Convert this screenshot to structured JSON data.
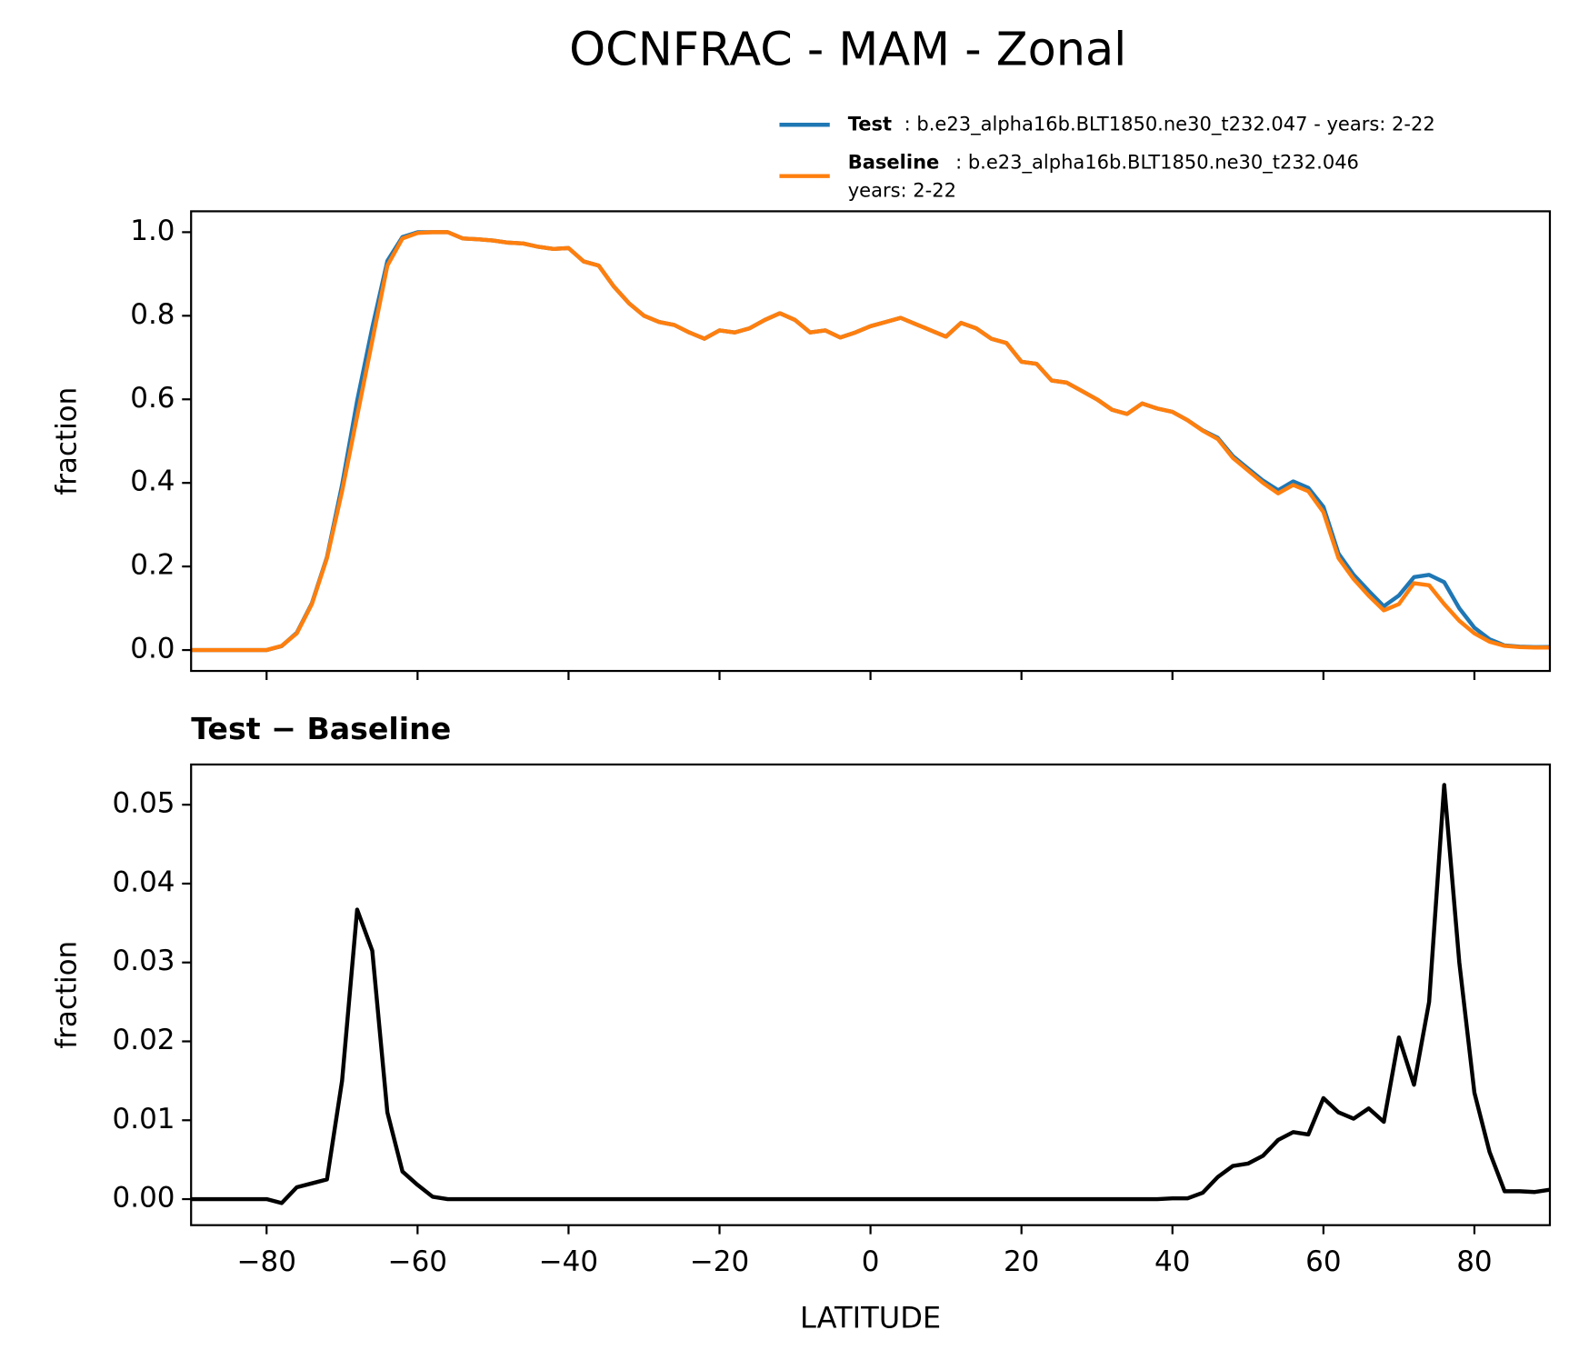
{
  "title": "OCNFRAC - MAM - Zonal",
  "chart_data": [
    {
      "type": "line",
      "ylabel": "fraction",
      "x": [
        -90,
        -88,
        -86,
        -84,
        -82,
        -80,
        -78,
        -76,
        -74,
        -72,
        -70,
        -68,
        -66,
        -64,
        -62,
        -60,
        -58,
        -56,
        -54,
        -52,
        -50,
        -48,
        -46,
        -44,
        -42,
        -40,
        -38,
        -36,
        -34,
        -32,
        -30,
        -28,
        -26,
        -24,
        -22,
        -20,
        -18,
        -16,
        -14,
        -12,
        -10,
        -8,
        -6,
        -4,
        -2,
        0,
        2,
        4,
        6,
        8,
        10,
        12,
        14,
        16,
        18,
        20,
        22,
        24,
        26,
        28,
        30,
        32,
        34,
        36,
        38,
        40,
        42,
        44,
        46,
        48,
        50,
        52,
        54,
        56,
        58,
        60,
        62,
        64,
        66,
        68,
        70,
        72,
        74,
        76,
        78,
        80,
        82,
        84,
        86,
        88,
        90
      ],
      "series": [
        {
          "name": "Test",
          "description": [
            ": b.e23_alpha16b.BLT1850.ne30_t232.047 - years: 2-22"
          ],
          "color": "#1f77b4",
          "values": [
            0,
            0,
            0,
            0,
            0,
            0,
            0.0095,
            0.0415,
            0.112,
            0.2225,
            0.395,
            0.5967,
            0.7715,
            0.931,
            0.9885,
            0.9998,
            1.0,
            1.0,
            0.985,
            0.983,
            0.98,
            0.975,
            0.973,
            0.965,
            0.96,
            0.962,
            0.93,
            0.92,
            0.87,
            0.83,
            0.8,
            0.785,
            0.778,
            0.76,
            0.745,
            0.765,
            0.76,
            0.77,
            0.79,
            0.806,
            0.79,
            0.76,
            0.765,
            0.748,
            0.76,
            0.775,
            0.785,
            0.795,
            0.78,
            0.765,
            0.75,
            0.783,
            0.77,
            0.745,
            0.735,
            0.69,
            0.685,
            0.645,
            0.64,
            0.62,
            0.6,
            0.575,
            0.565,
            0.59,
            0.578,
            0.5701,
            0.5501,
            0.5258,
            0.5078,
            0.4642,
            0.4345,
            0.4055,
            0.3825,
            0.4035,
            0.3882,
            0.3428,
            0.231,
            0.1802,
            0.1415,
            0.1048,
            0.1305,
            0.1745,
            0.18,
            0.1625,
            0.1,
            0.0535,
            0.026,
            0.011,
            0.008,
            0.0069,
            0.0072
          ]
        },
        {
          "name": "Baseline",
          "description": [
            ": b.e23_alpha16b.BLT1850.ne30_t232.046",
            "years: 2-22"
          ],
          "color": "#ff7f0e",
          "values": [
            0,
            0,
            0,
            0,
            0,
            0,
            0.01,
            0.04,
            0.11,
            0.22,
            0.38,
            0.56,
            0.74,
            0.92,
            0.985,
            0.998,
            1.0,
            1.0,
            0.985,
            0.983,
            0.98,
            0.975,
            0.973,
            0.965,
            0.96,
            0.962,
            0.93,
            0.92,
            0.87,
            0.83,
            0.8,
            0.785,
            0.778,
            0.76,
            0.745,
            0.765,
            0.76,
            0.77,
            0.79,
            0.806,
            0.79,
            0.76,
            0.765,
            0.748,
            0.76,
            0.775,
            0.785,
            0.795,
            0.78,
            0.765,
            0.75,
            0.783,
            0.77,
            0.745,
            0.735,
            0.69,
            0.685,
            0.645,
            0.64,
            0.62,
            0.6,
            0.575,
            0.565,
            0.59,
            0.578,
            0.57,
            0.55,
            0.525,
            0.505,
            0.46,
            0.43,
            0.4,
            0.375,
            0.395,
            0.38,
            0.33,
            0.22,
            0.17,
            0.13,
            0.095,
            0.11,
            0.16,
            0.155,
            0.11,
            0.07,
            0.04,
            0.02,
            0.01,
            0.007,
            0.006,
            0.006
          ]
        }
      ],
      "xlim": [
        -90,
        90
      ],
      "xticks": [
        -80,
        -60,
        -40,
        -20,
        0,
        20,
        40,
        60,
        80
      ],
      "xtick_labels": false,
      "ylim": [
        -0.05,
        1.05
      ],
      "yticks": [
        {
          "value": 0,
          "label": "0.0"
        },
        0.2,
        0.4,
        0.6,
        0.8,
        {
          "value": 1,
          "label": "1.0"
        }
      ],
      "legend": "upper right"
    },
    {
      "type": "line",
      "title": "Test − Baseline",
      "xlabel": "LATITUDE",
      "ylabel": "fraction",
      "x": [
        -90,
        -88,
        -86,
        -84,
        -82,
        -80,
        -78,
        -76,
        -74,
        -72,
        -70,
        -68,
        -66,
        -64,
        -62,
        -60,
        -58,
        -56,
        -54,
        -52,
        -50,
        -48,
        -46,
        -44,
        -42,
        -40,
        -38,
        -36,
        -34,
        -32,
        -30,
        -28,
        -26,
        -24,
        -22,
        -20,
        -18,
        -16,
        -14,
        -12,
        -10,
        -8,
        -6,
        -4,
        -2,
        0,
        2,
        4,
        6,
        8,
        10,
        12,
        14,
        16,
        18,
        20,
        22,
        24,
        26,
        28,
        30,
        32,
        34,
        36,
        38,
        40,
        42,
        44,
        46,
        48,
        50,
        52,
        54,
        56,
        58,
        60,
        62,
        64,
        66,
        68,
        70,
        72,
        74,
        76,
        78,
        80,
        82,
        84,
        86,
        88,
        90
      ],
      "series": [
        {
          "color": "#000000",
          "values": [
            0,
            0,
            0,
            0,
            0,
            0,
            -0.0005,
            0.0015,
            0.002,
            0.0025,
            0.015,
            0.0367,
            0.0315,
            0.011,
            0.0035,
            0.0018,
            0.0003,
            0,
            0,
            0,
            0,
            0,
            0,
            0,
            0,
            0,
            0,
            0,
            0,
            0,
            0,
            0,
            0,
            0,
            0,
            0,
            0,
            0,
            0,
            0,
            0,
            0,
            0,
            0,
            0,
            0,
            0,
            0,
            0,
            0,
            0,
            0,
            0,
            0,
            0,
            0,
            0,
            0,
            0,
            0,
            0,
            0,
            0,
            0,
            0,
            0.0001,
            0.0001,
            0.0008,
            0.0028,
            0.0042,
            0.0045,
            0.0055,
            0.0075,
            0.0085,
            0.0082,
            0.0128,
            0.011,
            0.0102,
            0.0115,
            0.0098,
            0.0205,
            0.0145,
            0.025,
            0.0525,
            0.03,
            0.0135,
            0.006,
            0.001,
            0.001,
            0.0009,
            0.0012
          ]
        }
      ],
      "xlim": [
        -90,
        90
      ],
      "xticks": [
        {
          "value": -80,
          "label": "−80"
        },
        {
          "value": -60,
          "label": "−60"
        },
        {
          "value": -40,
          "label": "−40"
        },
        {
          "value": -20,
          "label": "−20"
        },
        0,
        20,
        40,
        60,
        80
      ],
      "ylim": [
        -0.0033,
        0.0551
      ],
      "yticks": [
        {
          "value": 0,
          "label": "0.00"
        },
        {
          "value": 0.01,
          "label": "0.01"
        },
        {
          "value": 0.02,
          "label": "0.02"
        },
        {
          "value": 0.03,
          "label": "0.03"
        },
        {
          "value": 0.04,
          "label": "0.04"
        },
        {
          "value": 0.05,
          "label": "0.05"
        }
      ]
    }
  ]
}
